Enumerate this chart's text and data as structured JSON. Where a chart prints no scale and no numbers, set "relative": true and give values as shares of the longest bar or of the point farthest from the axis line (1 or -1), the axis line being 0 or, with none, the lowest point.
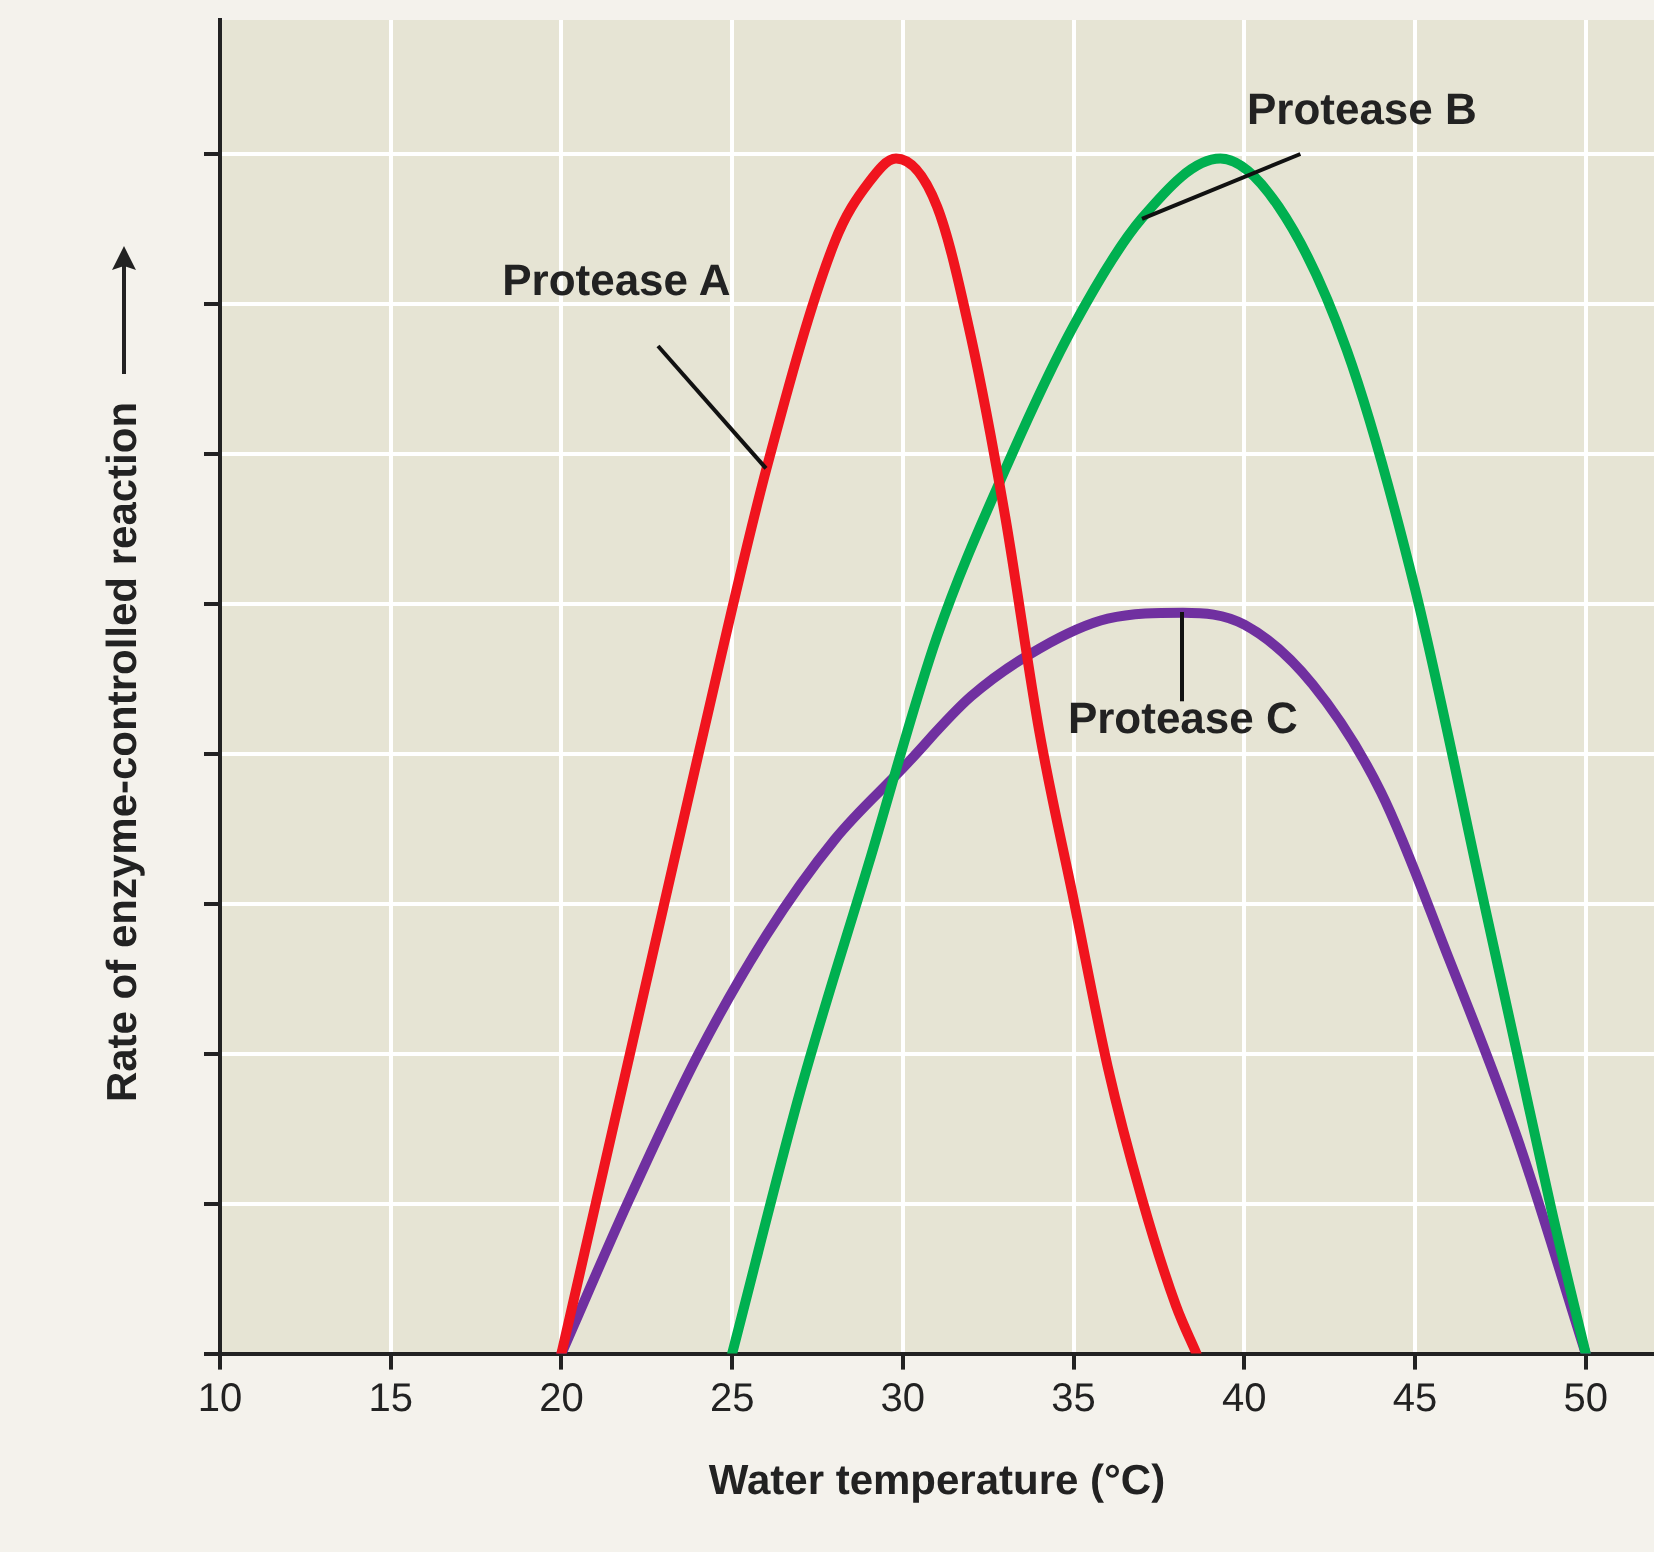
{
  "chart_data": {
    "type": "line",
    "relative": true,
    "xlabel": "Water temperature (°C)",
    "ylabel": "Rate of enzyme-controlled reaction",
    "xlim": [
      10,
      52
    ],
    "xticks": [
      10,
      15,
      20,
      25,
      30,
      35,
      40,
      45,
      50
    ],
    "grid": true,
    "legend": false,
    "marker": "none",
    "line_style": "solid",
    "series": [
      {
        "name": "Protease A",
        "color": "#f0141e",
        "x": [
          20,
          22,
          24,
          26,
          28,
          29,
          29.8,
          31,
          32,
          33,
          34,
          35,
          36,
          37,
          38,
          38.6
        ],
        "values": [
          0,
          0.25,
          0.5,
          0.74,
          0.93,
          0.98,
          1.0,
          0.96,
          0.85,
          0.7,
          0.52,
          0.38,
          0.24,
          0.13,
          0.04,
          0
        ]
      },
      {
        "name": "Protease B",
        "color": "#00b050",
        "x": [
          25,
          27,
          29,
          31,
          33,
          35,
          37,
          39.3,
          41,
          43,
          45,
          47,
          48,
          49,
          50
        ],
        "values": [
          0,
          0.22,
          0.41,
          0.6,
          0.74,
          0.86,
          0.95,
          1.0,
          0.96,
          0.84,
          0.64,
          0.38,
          0.25,
          0.12,
          0
        ]
      },
      {
        "name": "Protease C",
        "color": "#7030a0",
        "x": [
          20,
          22,
          24,
          26,
          28,
          30,
          32,
          34,
          36,
          38.2,
          40,
          42,
          44,
          46,
          48,
          50
        ],
        "values": [
          0,
          0.13,
          0.25,
          0.35,
          0.43,
          0.49,
          0.55,
          0.59,
          0.615,
          0.62,
          0.61,
          0.56,
          0.47,
          0.33,
          0.18,
          0
        ]
      }
    ]
  }
}
